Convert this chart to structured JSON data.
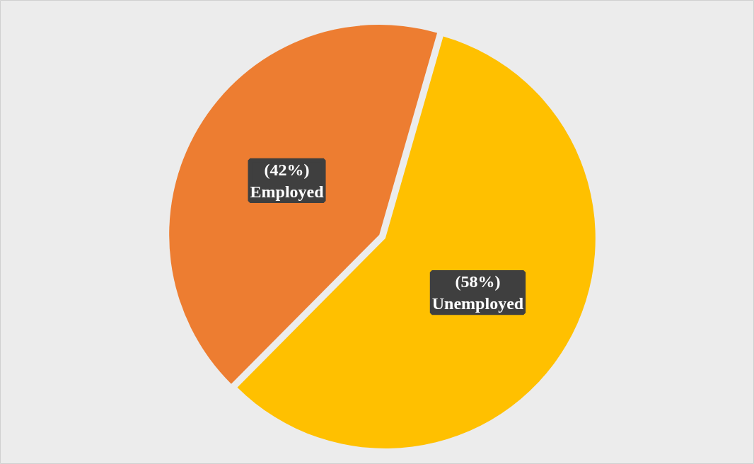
{
  "chart_data": {
    "type": "pie",
    "categories": [
      "Unemployed",
      "Employed"
    ],
    "values": [
      58,
      42
    ],
    "colors": [
      "#ffc000",
      "#ed7d31"
    ],
    "value_labels": [
      "(58%)",
      "(42%)"
    ]
  }
}
